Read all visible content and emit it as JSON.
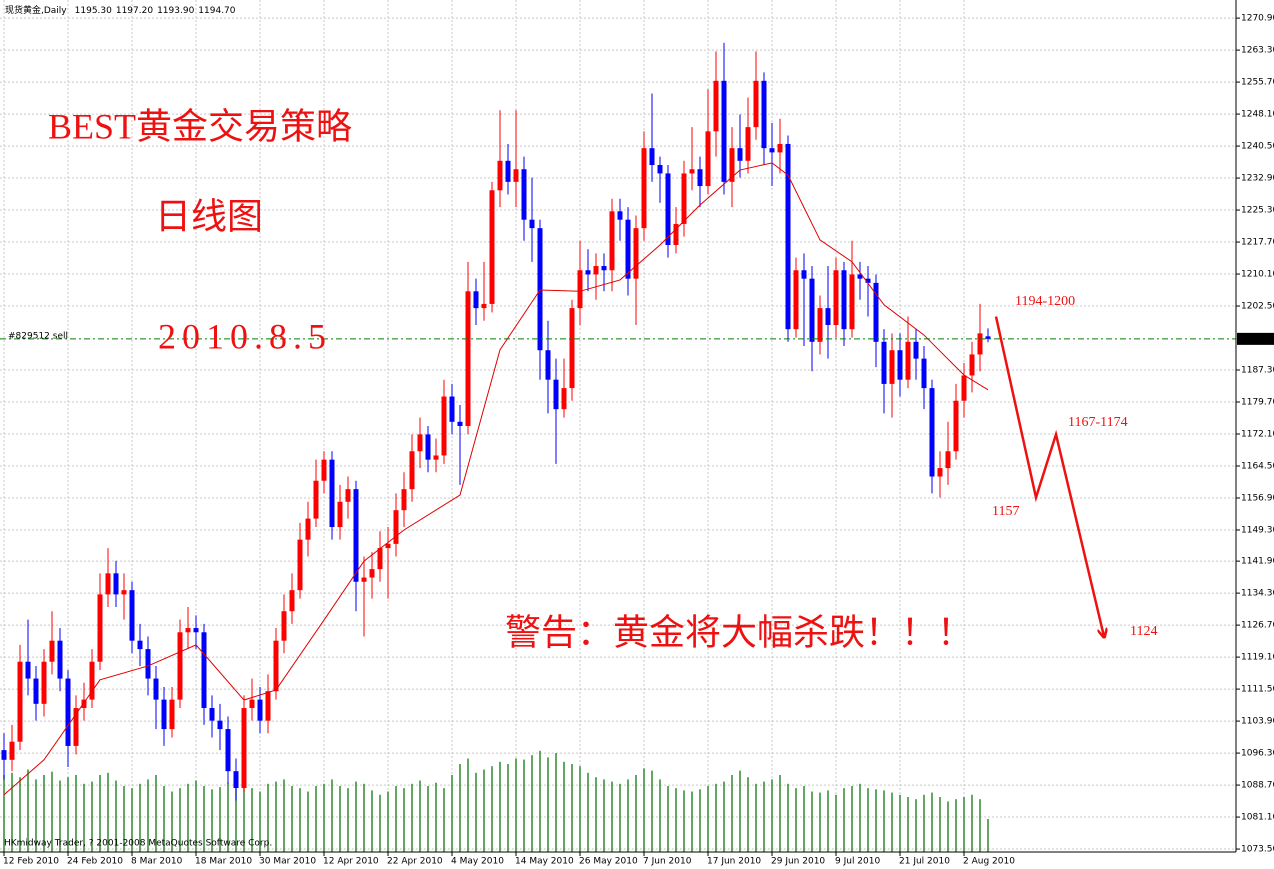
{
  "chart_data": {
    "type": "candlestick",
    "title": "现货黄金,Daily",
    "header_values": [
      1195.3,
      1197.2,
      1193.9,
      1194.7
    ],
    "header_value_labels": [
      "1195.30",
      "1197.20",
      "1193.90",
      "1194.70"
    ],
    "copyright": "HKmidway Trader, ? 2001-2008 MetaQuotes Software Corp.",
    "categories": [
      "12 Feb 2010",
      null,
      null,
      null,
      null,
      null,
      null,
      null,
      "24 Feb 2010",
      null,
      null,
      null,
      null,
      null,
      null,
      null,
      "8 Mar 2010",
      null,
      null,
      null,
      null,
      null,
      null,
      null,
      "18 Mar 2010",
      null,
      null,
      null,
      null,
      null,
      null,
      null,
      "30 Mar 2010",
      null,
      null,
      null,
      null,
      null,
      null,
      null,
      "12 Apr 2010",
      null,
      null,
      null,
      null,
      null,
      null,
      null,
      "22 Apr 2010",
      null,
      null,
      null,
      null,
      null,
      null,
      null,
      "4 May 2010",
      null,
      null,
      null,
      null,
      null,
      null,
      null,
      "14 May 2010",
      null,
      null,
      null,
      null,
      null,
      null,
      null,
      "26 May 2010",
      null,
      null,
      null,
      null,
      null,
      null,
      null,
      "7 Jun 2010",
      null,
      null,
      null,
      null,
      null,
      null,
      null,
      "17 Jun 2010",
      null,
      null,
      null,
      null,
      null,
      null,
      null,
      "29 Jun 2010",
      null,
      null,
      null,
      null,
      null,
      null,
      null,
      "9 Jul 2010",
      null,
      null,
      null,
      null,
      null,
      null,
      null,
      "21 Jul 2010",
      null,
      null,
      null,
      null,
      null,
      null,
      null,
      "2 Aug 2010",
      null,
      null,
      null
    ],
    "open": [
      1097,
      1094.7,
      1099,
      1118,
      1114,
      1108,
      1118,
      1123,
      1114,
      1098,
      1107,
      1109,
      1118,
      1134,
      1139,
      1134,
      1135,
      1123,
      1121,
      1114,
      1109,
      1102,
      1109,
      1125,
      1126,
      1125,
      1107,
      1104,
      1102,
      1092,
      1088,
      1107,
      1109,
      1104,
      1111,
      1123,
      1130,
      1135,
      1147,
      1152,
      1161,
      1166,
      1150,
      1156,
      1159,
      1137,
      1138,
      1140,
      1145,
      1146,
      1154,
      1159,
      1168,
      1172,
      1166,
      1167,
      1181,
      1175,
      1174,
      1206,
      1202,
      1203,
      1230,
      1237,
      1232,
      1235,
      1223,
      1221,
      1192,
      1185,
      1178,
      1183,
      1202,
      1211,
      1210,
      1212,
      1211,
      1225,
      1223,
      1209,
      1221,
      1240,
      1236,
      1234,
      1217,
      1222,
      1234,
      1235,
      1231,
      1244,
      1256,
      1232,
      1240,
      1237,
      1245,
      1256,
      1240,
      1239,
      1241,
      1197,
      1211,
      1209,
      1194,
      1202,
      1198,
      1211,
      1197,
      1210,
      1209,
      1208,
      1194,
      1184,
      1192,
      1185,
      1194,
      1190,
      1183,
      1162,
      1164,
      1168,
      1180,
      1186,
      1191,
      1195.3
    ],
    "high": [
      1101,
      1103,
      1122,
      1128,
      1117,
      1121,
      1130,
      1126,
      1116,
      1110,
      1113,
      1121,
      1139,
      1145,
      1142,
      1139,
      1137,
      1127,
      1124,
      1117,
      1112,
      1112,
      1128,
      1131,
      1129,
      1127,
      1110,
      1108,
      1105,
      1095,
      1110,
      1114,
      1112,
      1115,
      1126,
      1134,
      1139,
      1151,
      1156,
      1166,
      1168,
      1168,
      1160,
      1162,
      1161,
      1143,
      1144,
      1149,
      1150,
      1158,
      1163,
      1172,
      1176,
      1174,
      1171,
      1185,
      1184,
      1179,
      1213,
      1209,
      1213,
      1232,
      1249,
      1241,
      1249,
      1238,
      1233,
      1223,
      1199,
      1190,
      1190,
      1204,
      1218,
      1216,
      1215,
      1215,
      1228,
      1228,
      1226,
      1224,
      1244,
      1253,
      1238,
      1236,
      1226,
      1237,
      1245,
      1238,
      1254,
      1263,
      1265,
      1245,
      1248,
      1252,
      1263,
      1258,
      1246,
      1247,
      1243,
      1214,
      1215,
      1212,
      1205,
      1212,
      1214,
      1213,
      1218,
      1213,
      1212,
      1210,
      1197,
      1196,
      1196,
      1200,
      1197,
      1193,
      1185,
      1168,
      1175,
      1184,
      1189,
      1194,
      1203,
      1197.2
    ],
    "low": [
      1090,
      1092,
      1097,
      1110,
      1104,
      1105,
      1115,
      1111,
      1093,
      1096,
      1104,
      1107,
      1116,
      1131,
      1131,
      1128,
      1120,
      1117,
      1110,
      1102,
      1098,
      1100,
      1107,
      1121,
      1121,
      1103,
      1100,
      1097,
      1089,
      1085,
      1087,
      1104,
      1101,
      1101,
      1109,
      1120,
      1127,
      1133,
      1143,
      1150,
      1158,
      1147,
      1147,
      1152,
      1130,
      1124,
      1133,
      1137,
      1133,
      1143,
      1150,
      1156,
      1164,
      1163,
      1163,
      1165,
      1172,
      1160,
      1172,
      1198,
      1199,
      1201,
      1226,
      1229,
      1226,
      1218,
      1213,
      1185,
      1177,
      1165,
      1176,
      1180,
      1198,
      1206,
      1204,
      1206,
      1206,
      1218,
      1205,
      1198,
      1218,
      1232,
      1227,
      1214,
      1215,
      1219,
      1230,
      1226,
      1229,
      1238,
      1229,
      1226,
      1233,
      1234,
      1242,
      1236,
      1231,
      1234,
      1194,
      1195,
      1193,
      1187,
      1191,
      1190,
      1195,
      1193,
      1195,
      1204,
      1200,
      1188,
      1177,
      1176,
      1181,
      1183,
      1185,
      1178,
      1158,
      1157,
      1160,
      1166,
      1176,
      1182,
      1187,
      1193.9
    ],
    "close": [
      1094.7,
      1099,
      1118,
      1114,
      1108,
      1118,
      1123,
      1114,
      1098,
      1107,
      1109,
      1118,
      1134,
      1139,
      1134,
      1135,
      1123,
      1121,
      1114,
      1109,
      1102,
      1109,
      1125,
      1126,
      1125,
      1107,
      1104,
      1102,
      1092,
      1088,
      1107,
      1109,
      1104,
      1111,
      1123,
      1130,
      1135,
      1147,
      1152,
      1161,
      1166,
      1150,
      1156,
      1159,
      1137,
      1138,
      1140,
      1145,
      1146,
      1154,
      1159,
      1168,
      1172,
      1166,
      1167,
      1181,
      1175,
      1174,
      1206,
      1202,
      1203,
      1230,
      1237,
      1232,
      1235,
      1223,
      1221,
      1192,
      1185,
      1178,
      1183,
      1202,
      1211,
      1210,
      1212,
      1211,
      1225,
      1223,
      1209,
      1221,
      1240,
      1236,
      1234,
      1217,
      1222,
      1234,
      1235,
      1231,
      1244,
      1256,
      1232,
      1240,
      1237,
      1245,
      1256,
      1240,
      1239,
      1241,
      1197,
      1211,
      1209,
      1194,
      1202,
      1198,
      1211,
      1197,
      1210,
      1209,
      1208,
      1194,
      1184,
      1192,
      1185,
      1194,
      1190,
      1183,
      1162,
      1164,
      1168,
      1180,
      1186,
      1191,
      1196,
      1194.7
    ],
    "up_color": "#ff0000",
    "down_color": "#0000ff",
    "ma": {
      "x": [
        0,
        5,
        12,
        18,
        24,
        30,
        34,
        40,
        45,
        50,
        57,
        62,
        67,
        72,
        77,
        82,
        87,
        92,
        96,
        98,
        102,
        106,
        110,
        115,
        120,
        123
      ],
      "values": [
        1086.4,
        1094.7,
        1113.7,
        1117,
        1122,
        1108.9,
        1111.3,
        1127.9,
        1141.9,
        1149.3,
        1157.6,
        1192.1,
        1206.3,
        1206,
        1208.7,
        1217,
        1226.5,
        1234.8,
        1236.5,
        1233.6,
        1218.2,
        1213,
        1202.8,
        1195.6,
        1186.1,
        1182.6
      ],
      "color": "#e00000"
    },
    "volume": {
      "values": [
        70,
        72,
        68,
        75,
        66,
        70,
        73,
        65,
        68,
        70,
        62,
        64,
        70,
        72,
        65,
        60,
        58,
        62,
        66,
        70,
        60,
        55,
        58,
        62,
        65,
        60,
        57,
        59,
        63,
        67,
        60,
        58,
        55,
        62,
        64,
        66,
        60,
        58,
        55,
        60,
        62,
        66,
        60,
        58,
        64,
        62,
        56,
        52,
        55,
        60,
        58,
        62,
        65,
        60,
        63,
        58,
        70,
        80,
        85,
        72,
        75,
        78,
        82,
        80,
        85,
        84,
        88,
        92,
        86,
        90,
        82,
        80,
        78,
        72,
        68,
        66,
        64,
        62,
        66,
        70,
        76,
        74,
        66,
        60,
        58,
        56,
        55,
        57,
        60,
        62,
        64,
        70,
        74,
        68,
        62,
        64,
        66,
        70,
        62,
        58,
        60,
        55,
        54,
        56,
        52,
        58,
        60,
        62,
        58,
        57,
        56,
        54,
        52,
        50,
        48,
        52,
        54,
        50,
        46,
        48,
        50,
        52,
        48,
        30
      ],
      "color": "#2e8b2e",
      "ylim": [
        0,
        200
      ]
    },
    "price_line": {
      "label": "#829512 sell",
      "value": 1194.7,
      "value_label": "1194.70",
      "color": "#008000"
    },
    "ylim": [
      1072.8,
      1275.2
    ],
    "yticks": [
      {
        "value": 1270.9,
        "label": "1270.90"
      },
      {
        "value": 1263.3,
        "label": "1263.30"
      },
      {
        "value": 1255.7,
        "label": "1255.70"
      },
      {
        "value": 1248.1,
        "label": "1248.10"
      },
      {
        "value": 1240.5,
        "label": "1240.50"
      },
      {
        "value": 1232.9,
        "label": "1232.90"
      },
      {
        "value": 1225.3,
        "label": "1225.30"
      },
      {
        "value": 1217.7,
        "label": "1217.70"
      },
      {
        "value": 1210.1,
        "label": "1210.10"
      },
      {
        "value": 1202.5,
        "label": "1202.50"
      },
      {
        "value": 1187.3,
        "label": "1187.30"
      },
      {
        "value": 1179.7,
        "label": "1179.70"
      },
      {
        "value": 1172.1,
        "label": "1172.10"
      },
      {
        "value": 1164.5,
        "label": "1164.50"
      },
      {
        "value": 1156.9,
        "label": "1156.90"
      },
      {
        "value": 1149.3,
        "label": "1149.30"
      },
      {
        "value": 1141.9,
        "label": "1141.90"
      },
      {
        "value": 1134.3,
        "label": "1134.30"
      },
      {
        "value": 1126.7,
        "label": "1126.70"
      },
      {
        "value": 1119.1,
        "label": "1119.10"
      },
      {
        "value": 1111.5,
        "label": "1111.50"
      },
      {
        "value": 1103.9,
        "label": "1103.90"
      },
      {
        "value": 1096.3,
        "label": "1096.30"
      },
      {
        "value": 1088.7,
        "label": "1088.70"
      },
      {
        "value": 1081.1,
        "label": "1081.10"
      },
      {
        "value": 1073.5,
        "label": "1073.50"
      }
    ],
    "grid": true,
    "annotations": [
      "BEST黄金交易策略",
      "日线图",
      "2010.8.5",
      "警告：黄金将大幅杀跌！！！"
    ],
    "forecast": {
      "x": [
        124,
        129,
        131.5,
        137.5
      ],
      "values": [
        1200,
        1157,
        1172,
        1124
      ],
      "value_labels": [
        "1194-1200",
        "1157",
        "1167-1174",
        "1124"
      ],
      "color": "#ee1111"
    }
  }
}
